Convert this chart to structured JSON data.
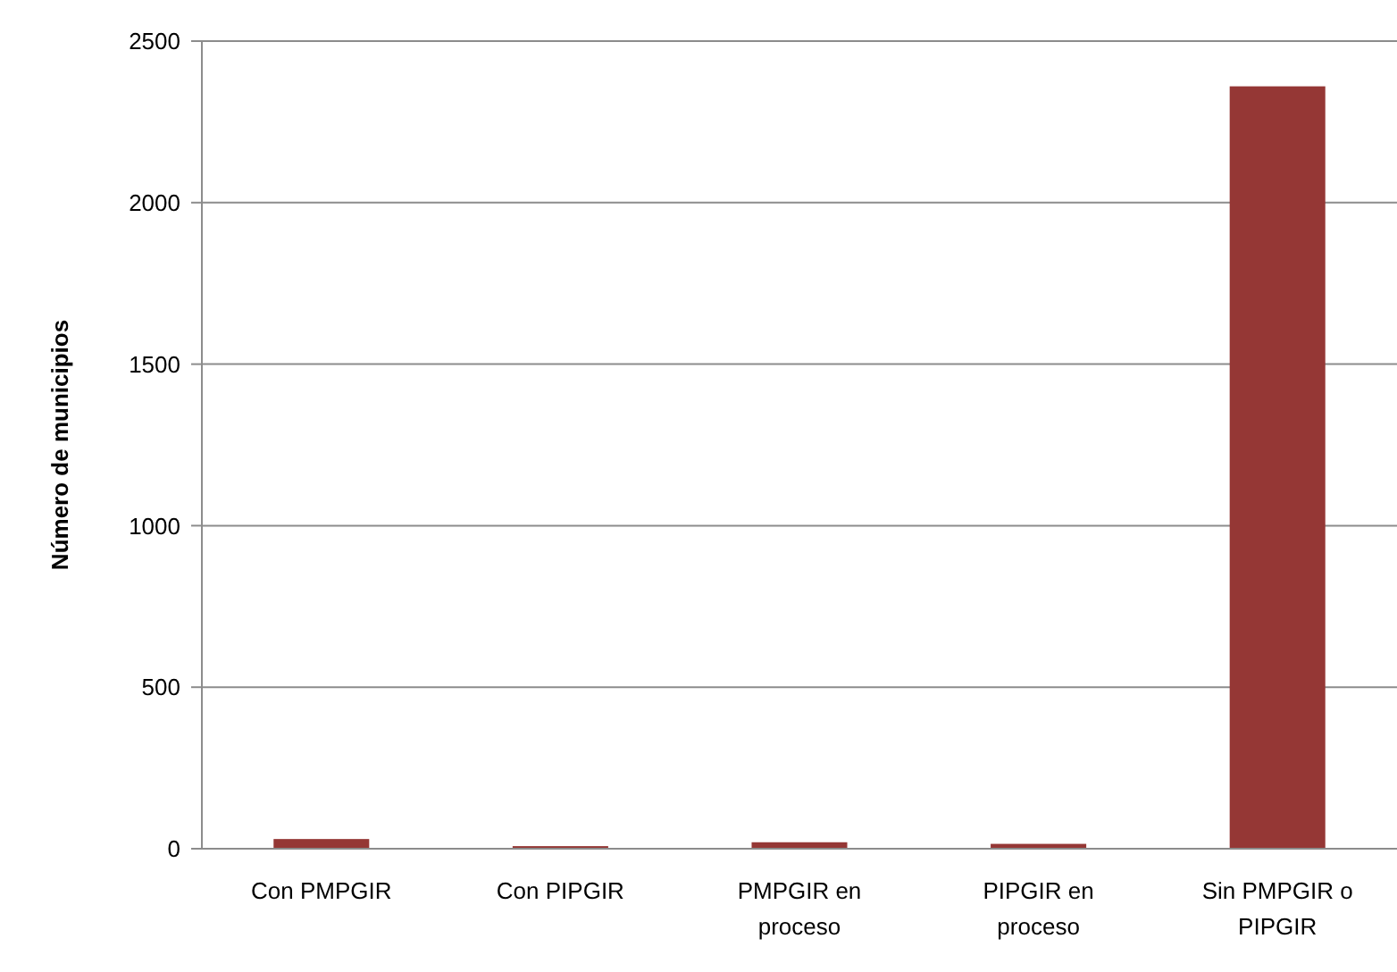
{
  "chart_data": {
    "type": "bar",
    "ylabel": "Número de municipios",
    "categories": [
      "Con PMPGIR",
      "Con PIPGIR",
      "PMPGIR en proceso",
      "PIPGIR en proceso",
      "Sin PMPGIR o PIPGIR"
    ],
    "values": [
      30,
      8,
      20,
      15,
      2360
    ],
    "color": "#953735",
    "ylim": [
      0,
      2500
    ],
    "yticks": [
      0,
      500,
      1000,
      1500,
      2000,
      2500
    ],
    "grid": "y"
  }
}
